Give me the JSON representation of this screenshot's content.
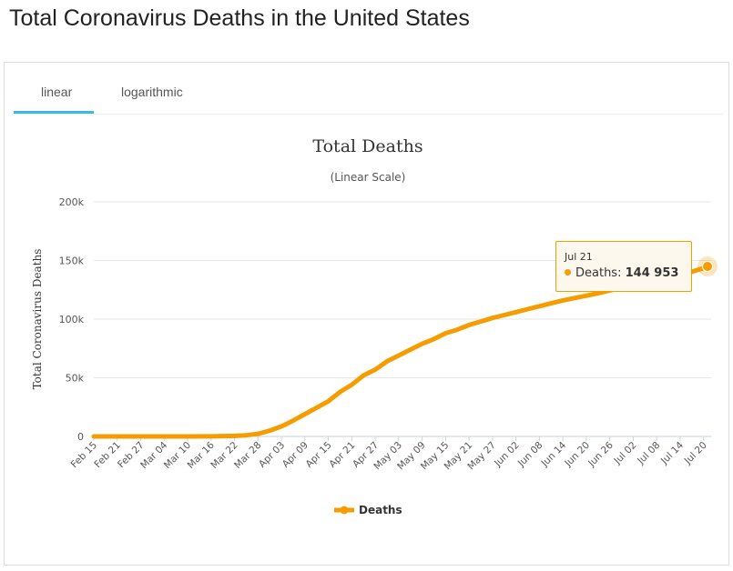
{
  "page": {
    "title": "Total Coronavirus Deaths in the United States"
  },
  "tabs": [
    {
      "label": "linear",
      "active": true
    },
    {
      "label": "logarithmic",
      "active": false
    }
  ],
  "colors": {
    "series": "#f59c00",
    "tab_accent": "#3ab8e8",
    "tooltip_bg": "#fdf8ee"
  },
  "tooltip": {
    "date": "Jul 21",
    "series_label": "Deaths:",
    "value": "144 953"
  },
  "chart_data": {
    "type": "line",
    "title": "Total Deaths",
    "subtitle": "(Linear Scale)",
    "xlabel": "",
    "ylabel": "Total Coronavirus Deaths",
    "ylim": [
      0,
      200000
    ],
    "yticks": [
      0,
      50000,
      100000,
      150000,
      200000
    ],
    "ytick_labels": [
      "0",
      "50k",
      "100k",
      "150k",
      "200k"
    ],
    "grid": true,
    "legend": "bottom-center",
    "tick_labels": [
      "Feb 15",
      "Feb 21",
      "Feb 27",
      "Mar 04",
      "Mar 10",
      "Mar 16",
      "Mar 22",
      "Mar 28",
      "Apr 03",
      "Apr 09",
      "Apr 15",
      "Apr 21",
      "Apr 27",
      "May 03",
      "May 09",
      "May 15",
      "May 21",
      "May 27",
      "Jun 02",
      "Jun 08",
      "Jun 14",
      "Jun 20",
      "Jun 26",
      "Jul 02",
      "Jul 08",
      "Jul 14",
      "Jul 20"
    ],
    "x_start": "Feb 15",
    "x_end": "Jul 21",
    "series": [
      {
        "name": "Deaths",
        "x": [
          "Feb 15",
          "Feb 21",
          "Feb 27",
          "Mar 04",
          "Mar 10",
          "Mar 16",
          "Mar 22",
          "Mar 25",
          "Mar 28",
          "Mar 31",
          "Apr 03",
          "Apr 06",
          "Apr 09",
          "Apr 12",
          "Apr 15",
          "Apr 18",
          "Apr 21",
          "Apr 24",
          "Apr 27",
          "Apr 30",
          "May 03",
          "May 06",
          "May 09",
          "May 12",
          "May 15",
          "May 18",
          "May 21",
          "May 24",
          "May 27",
          "May 30",
          "Jun 02",
          "Jun 05",
          "Jun 08",
          "Jun 11",
          "Jun 14",
          "Jun 17",
          "Jun 20",
          "Jun 23",
          "Jun 26",
          "Jun 29",
          "Jul 02",
          "Jul 05",
          "Jul 08",
          "Jul 11",
          "Jul 14",
          "Jul 17",
          "Jul 20",
          "Jul 21"
        ],
        "values": [
          0,
          0,
          0,
          10,
          30,
          90,
          450,
          1000,
          2200,
          5000,
          8500,
          13500,
          19000,
          24500,
          30000,
          38000,
          44000,
          52000,
          57000,
          64000,
          69000,
          74000,
          79000,
          83000,
          88000,
          91000,
          95000,
          98000,
          101000,
          103500,
          106000,
          108500,
          111000,
          113500,
          116000,
          118000,
          120000,
          122000,
          124500,
          126500,
          129000,
          131000,
          133000,
          135500,
          138000,
          140500,
          143500,
          144953
        ]
      }
    ]
  }
}
